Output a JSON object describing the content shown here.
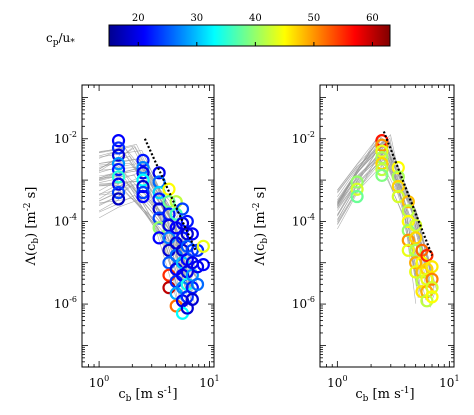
{
  "colorbar": {
    "label": "c_p/u_*",
    "ticks": [
      "20",
      "30",
      "40",
      "50",
      "60"
    ],
    "range": [
      15,
      63
    ],
    "colormap": "jet"
  },
  "chart_data": [
    {
      "type": "scatter",
      "panel": "left",
      "xlabel": "c_b [m s^-1]",
      "ylabel": "Λ(c_b) [m^-2 s]",
      "xscale": "log",
      "yscale": "log",
      "xlim": [
        0.7,
        11
      ],
      "ylim": [
        3e-08,
        0.2
      ],
      "xticks": [
        "10^0",
        "10^1"
      ],
      "yticks": [
        "10^-6",
        "10^-4",
        "10^-2"
      ],
      "grid": false,
      "x_bins": [
        1.5,
        2.5,
        3.5,
        4.3,
        5.0,
        5.7,
        6.3,
        7.0,
        7.8,
        8.8
      ],
      "points": [
        {
          "x": 1.5,
          "y": 0.009,
          "c": 21
        },
        {
          "x": 1.5,
          "y": 0.006,
          "c": 23
        },
        {
          "x": 1.5,
          "y": 0.004,
          "c": 19
        },
        {
          "x": 1.5,
          "y": 0.0025,
          "c": 28
        },
        {
          "x": 1.5,
          "y": 0.0018,
          "c": 22
        },
        {
          "x": 1.5,
          "y": 0.0012,
          "c": 35
        },
        {
          "x": 1.5,
          "y": 0.0008,
          "c": 20
        },
        {
          "x": 1.5,
          "y": 0.0005,
          "c": 24
        },
        {
          "x": 1.5,
          "y": 0.00035,
          "c": 18
        },
        {
          "x": 2.5,
          "y": 0.003,
          "c": 22
        },
        {
          "x": 2.5,
          "y": 0.002,
          "c": 27
        },
        {
          "x": 2.5,
          "y": 0.0015,
          "c": 20
        },
        {
          "x": 2.5,
          "y": 0.001,
          "c": 33
        },
        {
          "x": 2.5,
          "y": 0.0007,
          "c": 19
        },
        {
          "x": 2.5,
          "y": 0.0005,
          "c": 24
        },
        {
          "x": 2.5,
          "y": 0.0004,
          "c": 21
        },
        {
          "x": 3.5,
          "y": 0.0015,
          "c": 20
        },
        {
          "x": 3.5,
          "y": 0.0009,
          "c": 26
        },
        {
          "x": 3.5,
          "y": 0.0005,
          "c": 31
        },
        {
          "x": 3.5,
          "y": 0.00035,
          "c": 22
        },
        {
          "x": 3.5,
          "y": 0.0002,
          "c": 19
        },
        {
          "x": 3.5,
          "y": 0.00012,
          "c": 24
        },
        {
          "x": 3.5,
          "y": 7e-05,
          "c": 40
        },
        {
          "x": 3.5,
          "y": 4e-05,
          "c": 21
        },
        {
          "x": 4.3,
          "y": 0.0006,
          "c": 45
        },
        {
          "x": 4.3,
          "y": 0.0003,
          "c": 38
        },
        {
          "x": 4.3,
          "y": 0.00015,
          "c": 22
        },
        {
          "x": 4.3,
          "y": 8e-05,
          "c": 20
        },
        {
          "x": 4.3,
          "y": 4e-05,
          "c": 27
        },
        {
          "x": 4.3,
          "y": 2e-05,
          "c": 19
        },
        {
          "x": 4.3,
          "y": 1e-05,
          "c": 25
        },
        {
          "x": 4.3,
          "y": 5e-06,
          "c": 55
        },
        {
          "x": 4.3,
          "y": 2.5e-06,
          "c": 60
        },
        {
          "x": 5.0,
          "y": 0.0003,
          "c": 42
        },
        {
          "x": 5.0,
          "y": 0.00015,
          "c": 36
        },
        {
          "x": 5.0,
          "y": 7e-05,
          "c": 21
        },
        {
          "x": 5.0,
          "y": 3e-05,
          "c": 19
        },
        {
          "x": 5.0,
          "y": 1.5e-05,
          "c": 26
        },
        {
          "x": 5.0,
          "y": 7e-06,
          "c": 20
        },
        {
          "x": 5.0,
          "y": 3.5e-06,
          "c": 23
        },
        {
          "x": 5.0,
          "y": 1.8e-06,
          "c": 29
        },
        {
          "x": 5.0,
          "y": 9e-07,
          "c": 52
        },
        {
          "x": 5.7,
          "y": 0.0002,
          "c": 24
        },
        {
          "x": 5.7,
          "y": 9e-05,
          "c": 20
        },
        {
          "x": 5.7,
          "y": 4e-05,
          "c": 22
        },
        {
          "x": 5.7,
          "y": 2e-05,
          "c": 19
        },
        {
          "x": 5.7,
          "y": 1e-05,
          "c": 30
        },
        {
          "x": 5.7,
          "y": 5e-06,
          "c": 21
        },
        {
          "x": 5.7,
          "y": 2.5e-06,
          "c": 27
        },
        {
          "x": 5.7,
          "y": 1.2e-06,
          "c": 20
        },
        {
          "x": 5.7,
          "y": 6e-07,
          "c": 33
        },
        {
          "x": 6.3,
          "y": 0.0001,
          "c": 22
        },
        {
          "x": 6.3,
          "y": 5e-05,
          "c": 19
        },
        {
          "x": 6.3,
          "y": 2.5e-05,
          "c": 25
        },
        {
          "x": 6.3,
          "y": 1.2e-05,
          "c": 21
        },
        {
          "x": 6.3,
          "y": 6e-06,
          "c": 20
        },
        {
          "x": 6.3,
          "y": 3e-06,
          "c": 34
        },
        {
          "x": 6.3,
          "y": 1.5e-06,
          "c": 23
        },
        {
          "x": 6.3,
          "y": 8e-07,
          "c": 19
        },
        {
          "x": 7.0,
          "y": 5e-05,
          "c": 21
        },
        {
          "x": 7.0,
          "y": 2e-05,
          "c": 24
        },
        {
          "x": 7.0,
          "y": 1e-05,
          "c": 20
        },
        {
          "x": 7.0,
          "y": 5e-06,
          "c": 28
        },
        {
          "x": 7.0,
          "y": 2.5e-06,
          "c": 22
        },
        {
          "x": 7.0,
          "y": 1.3e-06,
          "c": 19
        },
        {
          "x": 7.8,
          "y": 2e-05,
          "c": 23
        },
        {
          "x": 7.8,
          "y": 8e-06,
          "c": 20
        },
        {
          "x": 7.8,
          "y": 3e-06,
          "c": 26
        },
        {
          "x": 8.8,
          "y": 2.5e-05,
          "c": 44
        },
        {
          "x": 8.8,
          "y": 9e-06,
          "c": 21
        }
      ],
      "dotted_line": [
        [
          2.6,
          0.01
        ],
        [
          7.5,
          2e-05
        ]
      ]
    },
    {
      "type": "scatter",
      "panel": "right",
      "xlabel": "c_b [m s^-1]",
      "ylabel": "Λ(c_b) [m^-2 s]",
      "xscale": "log",
      "yscale": "log",
      "xlim": [
        0.7,
        11
      ],
      "ylim": [
        3e-08,
        0.2
      ],
      "xticks": [
        "10^0",
        "10^1"
      ],
      "yticks": [
        "10^-6",
        "10^-4",
        "10^-2"
      ],
      "grid": false,
      "points": [
        {
          "x": 1.5,
          "y": 0.0009,
          "c": 40
        },
        {
          "x": 1.5,
          "y": 0.0006,
          "c": 43
        },
        {
          "x": 1.5,
          "y": 0.0004,
          "c": 38
        },
        {
          "x": 2.5,
          "y": 0.009,
          "c": 56
        },
        {
          "x": 2.5,
          "y": 0.007,
          "c": 50
        },
        {
          "x": 2.5,
          "y": 0.005,
          "c": 44
        },
        {
          "x": 2.5,
          "y": 0.0035,
          "c": 41
        },
        {
          "x": 2.5,
          "y": 0.0025,
          "c": 47
        },
        {
          "x": 2.5,
          "y": 0.0018,
          "c": 42
        },
        {
          "x": 2.5,
          "y": 0.0013,
          "c": 39
        },
        {
          "x": 3.5,
          "y": 0.002,
          "c": 45
        },
        {
          "x": 3.5,
          "y": 0.0012,
          "c": 41
        },
        {
          "x": 3.5,
          "y": 0.0007,
          "c": 47
        },
        {
          "x": 3.5,
          "y": 0.0004,
          "c": 43
        },
        {
          "x": 4.3,
          "y": 0.0003,
          "c": 48
        },
        {
          "x": 4.3,
          "y": 0.00018,
          "c": 42
        },
        {
          "x": 4.3,
          "y": 0.0001,
          "c": 45
        },
        {
          "x": 4.3,
          "y": 6e-05,
          "c": 40
        },
        {
          "x": 4.3,
          "y": 3.5e-05,
          "c": 50
        },
        {
          "x": 4.3,
          "y": 2e-05,
          "c": 44
        },
        {
          "x": 5.0,
          "y": 8e-05,
          "c": 43
        },
        {
          "x": 5.0,
          "y": 4e-05,
          "c": 47
        },
        {
          "x": 5.0,
          "y": 2e-05,
          "c": 41
        },
        {
          "x": 5.0,
          "y": 1e-05,
          "c": 49
        },
        {
          "x": 5.0,
          "y": 6e-06,
          "c": 44
        },
        {
          "x": 5.7,
          "y": 2e-05,
          "c": 52
        },
        {
          "x": 5.7,
          "y": 1e-05,
          "c": 45
        },
        {
          "x": 5.7,
          "y": 6e-06,
          "c": 48
        },
        {
          "x": 5.7,
          "y": 3.5e-06,
          "c": 42
        },
        {
          "x": 5.7,
          "y": 2e-06,
          "c": 46
        },
        {
          "x": 6.3,
          "y": 1.5e-05,
          "c": 55
        },
        {
          "x": 6.3,
          "y": 7e-06,
          "c": 47
        },
        {
          "x": 6.3,
          "y": 4e-06,
          "c": 44
        },
        {
          "x": 6.3,
          "y": 2e-06,
          "c": 49
        },
        {
          "x": 6.3,
          "y": 1.2e-06,
          "c": 42
        },
        {
          "x": 7.0,
          "y": 8e-06,
          "c": 46
        },
        {
          "x": 7.0,
          "y": 4e-06,
          "c": 51
        },
        {
          "x": 7.0,
          "y": 2.5e-06,
          "c": 43
        },
        {
          "x": 7.0,
          "y": 1.5e-06,
          "c": 45
        }
      ],
      "dotted_line": [
        [
          2.6,
          0.015
        ],
        [
          7.0,
          1.5e-05
        ]
      ]
    }
  ]
}
